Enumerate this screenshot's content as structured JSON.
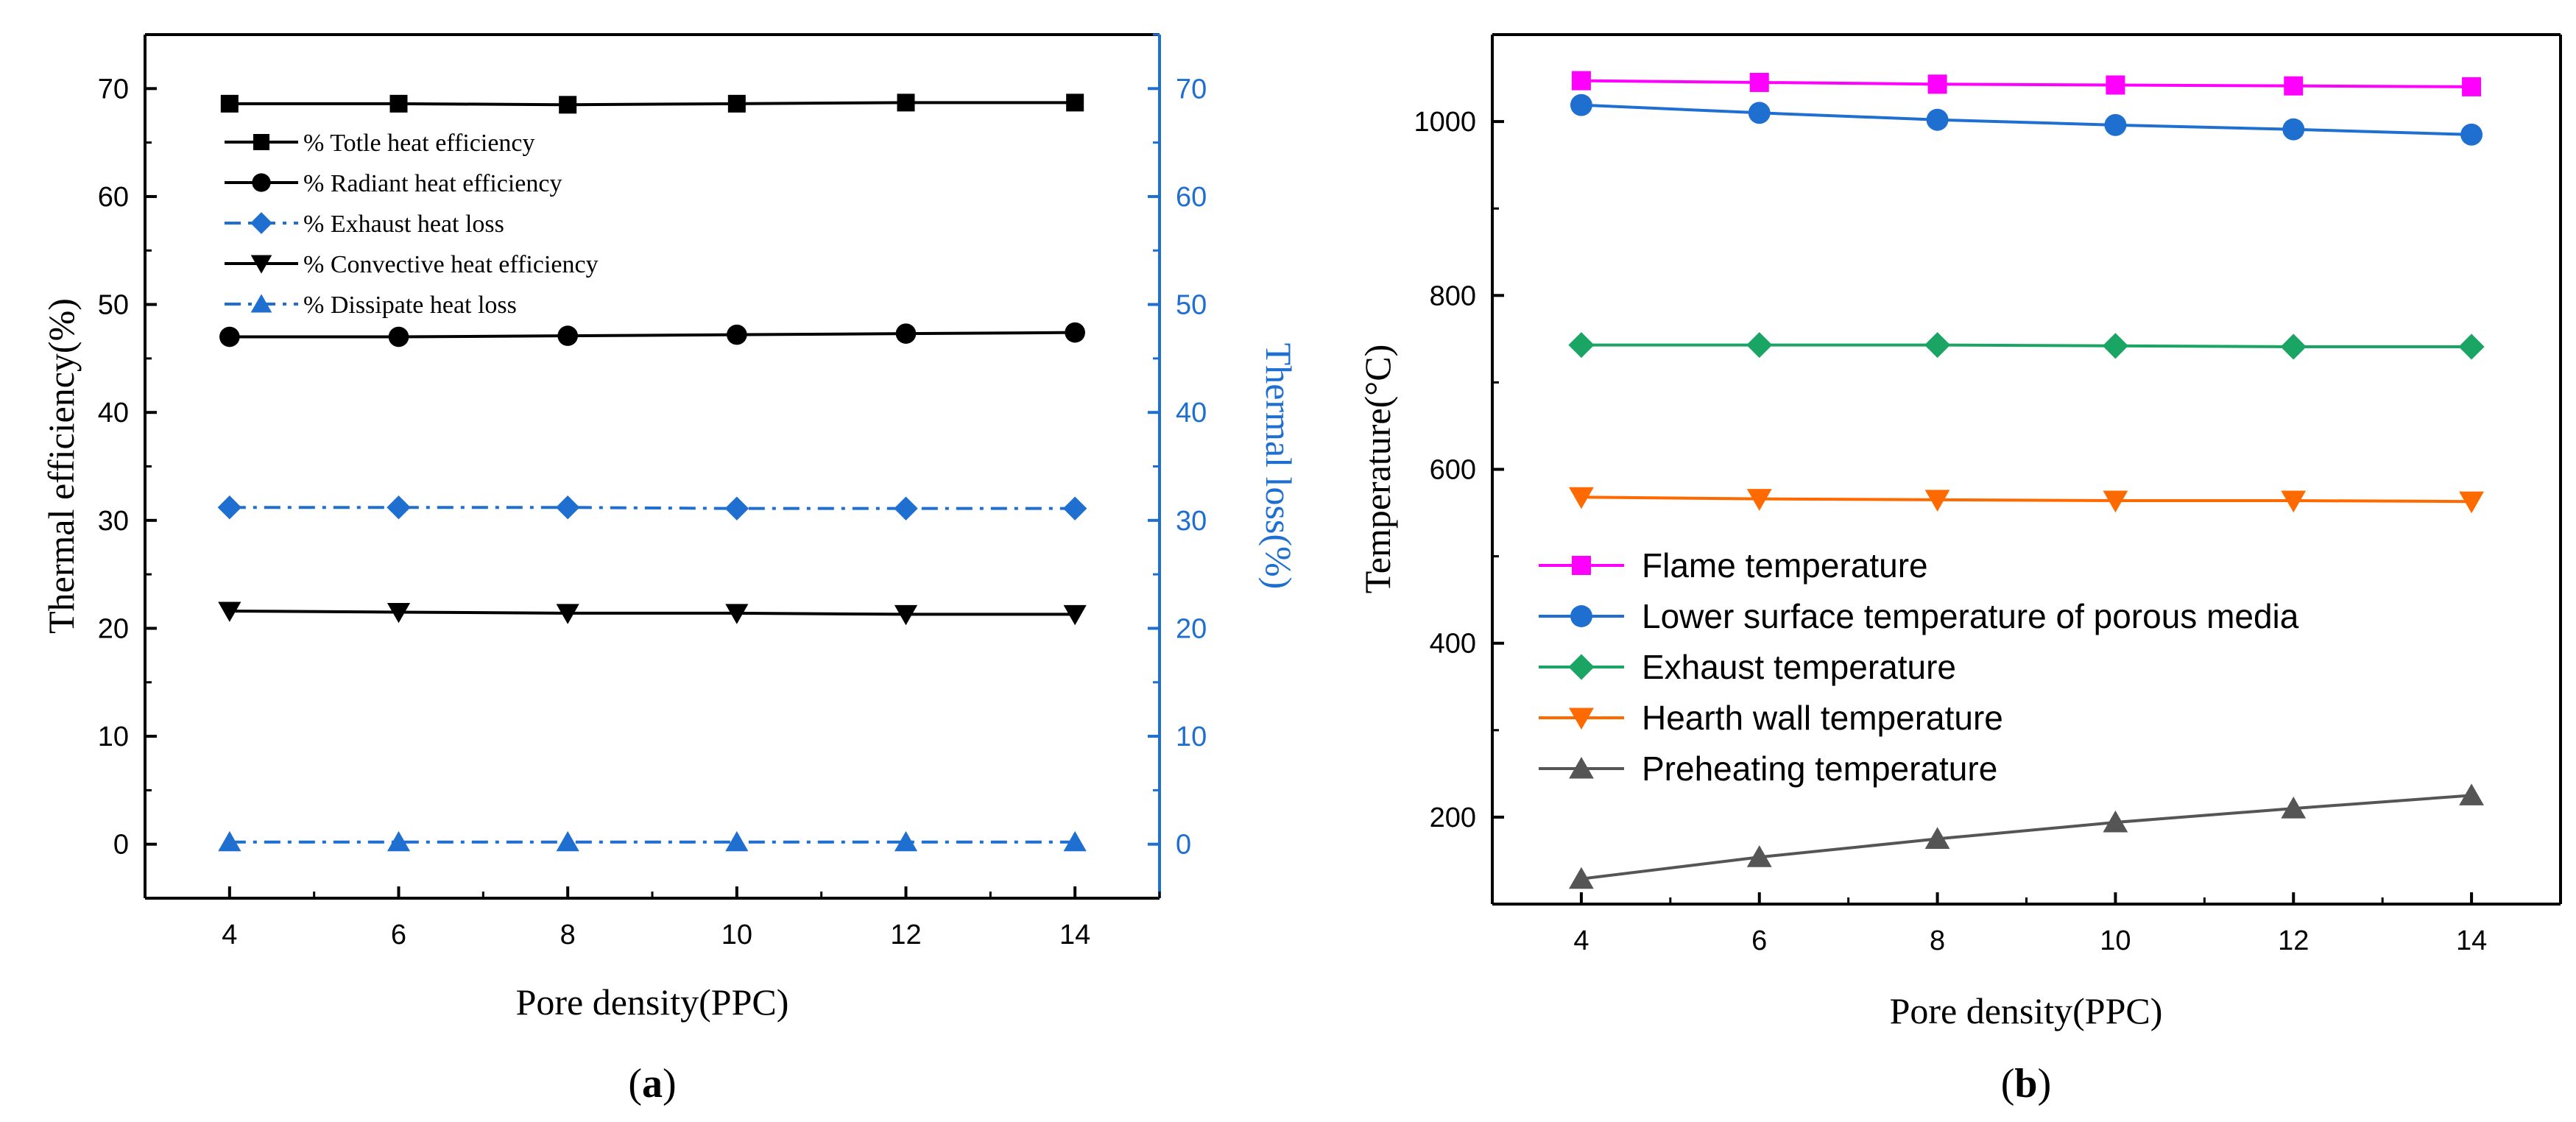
{
  "chart_data": [
    {
      "type": "line",
      "caption_letter": "a",
      "x": [
        4,
        6,
        8,
        10,
        12,
        14
      ],
      "xlabel": "Pore density(PPC)",
      "ylabel": "Thermal efficiency(%)",
      "y2label": "Thermal loss(%)",
      "xlim": [
        3,
        15
      ],
      "ylim": [
        -5,
        75
      ],
      "y2lim": [
        -5,
        75
      ],
      "xticks": [
        "4",
        "6",
        "8",
        "10",
        "12",
        "14"
      ],
      "yticks": [
        "0",
        "10",
        "20",
        "30",
        "40",
        "50",
        "60",
        "70"
      ],
      "y2ticks": [
        "0",
        "10",
        "20",
        "30",
        "40",
        "50",
        "60",
        "70"
      ],
      "legend_position": "top-left",
      "series": [
        {
          "name": "% Totle heat efficiency",
          "axis": "left",
          "color": "#000000",
          "marker": "square",
          "dash": "solid",
          "values": [
            68.6,
            68.6,
            68.5,
            68.6,
            68.7,
            68.7
          ]
        },
        {
          "name": "% Radiant heat efficiency",
          "axis": "left",
          "color": "#000000",
          "marker": "circle",
          "dash": "solid",
          "values": [
            47.0,
            47.0,
            47.1,
            47.2,
            47.3,
            47.4
          ]
        },
        {
          "name": "% Exhaust heat loss",
          "axis": "right",
          "color": "#1f6fd1",
          "marker": "diamond",
          "dash": "dashdot",
          "values": [
            31.2,
            31.2,
            31.2,
            31.1,
            31.1,
            31.1
          ]
        },
        {
          "name": "% Convective heat efficiency",
          "axis": "left",
          "color": "#000000",
          "marker": "triangle-down",
          "dash": "solid",
          "values": [
            21.6,
            21.5,
            21.4,
            21.4,
            21.3,
            21.3
          ]
        },
        {
          "name": "% Dissipate heat loss",
          "axis": "right",
          "color": "#1f6fd1",
          "marker": "triangle-up",
          "dash": "dashdot",
          "values": [
            0.2,
            0.2,
            0.2,
            0.2,
            0.2,
            0.2
          ]
        }
      ]
    },
    {
      "type": "line",
      "caption_letter": "b",
      "x": [
        4,
        6,
        8,
        10,
        12,
        14
      ],
      "xlabel": "Pore density(PPC)",
      "ylabel": "Temperature(°C)",
      "xlim": [
        3,
        15
      ],
      "ylim": [
        100,
        1100
      ],
      "xticks": [
        "4",
        "6",
        "8",
        "10",
        "12",
        "14"
      ],
      "yticks": [
        "200",
        "400",
        "600",
        "800",
        "1000"
      ],
      "legend_position": "lower-left",
      "series": [
        {
          "name": "Flame temperature",
          "color": "#ff00ff",
          "marker": "square",
          "dash": "solid",
          "values": [
            1047,
            1045,
            1043,
            1042,
            1041,
            1040
          ]
        },
        {
          "name": "Lower surface temperature of porous media",
          "color": "#1f6fd1",
          "marker": "circle",
          "dash": "solid",
          "values": [
            1019,
            1010,
            1002,
            996,
            991,
            985
          ]
        },
        {
          "name": "Exhaust temperature",
          "color": "#1aa564",
          "marker": "diamond",
          "dash": "solid",
          "values": [
            743,
            743,
            743,
            742,
            741,
            741
          ]
        },
        {
          "name": "Hearth wall temperature",
          "color": "#ff6a00",
          "marker": "triangle-down",
          "dash": "solid",
          "values": [
            568,
            566,
            565,
            564,
            564,
            563
          ]
        },
        {
          "name": "Preheating temperature",
          "color": "#555555",
          "marker": "triangle-up",
          "dash": "solid",
          "values": [
            129,
            154,
            175,
            194,
            210,
            225
          ]
        }
      ]
    }
  ]
}
